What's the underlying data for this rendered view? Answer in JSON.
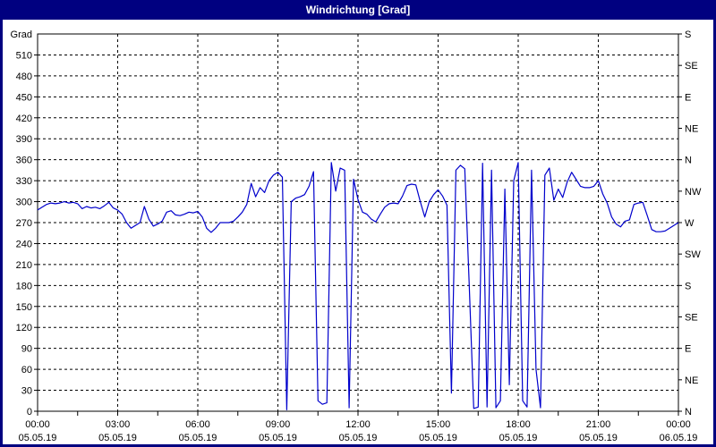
{
  "window": {
    "title": "Windrichtung [Grad]"
  },
  "colors": {
    "titlebar_bg": "#000080",
    "titlebar_text": "#ffffff",
    "frame": "#000080",
    "plot_background": "#ffffff",
    "line": "#0000cc",
    "grid": "#000000",
    "text": "#000000"
  },
  "chart_data": {
    "type": "line",
    "title": "Windrichtung [Grad]",
    "grid": {
      "horizontal_step_deg": 30,
      "vertical_step_minutes": 180,
      "style": "dashed"
    },
    "y_axis_left": {
      "label": "Grad",
      "min": 0,
      "max": 540,
      "ticks": [
        510,
        480,
        450,
        420,
        390,
        360,
        330,
        300,
        270,
        240,
        210,
        180,
        150,
        120,
        90,
        60,
        30,
        0
      ]
    },
    "y_axis_right": {
      "tick_step_deg": 45,
      "ticks": [
        {
          "deg": 540,
          "label": "S"
        },
        {
          "deg": 495,
          "label": "SE"
        },
        {
          "deg": 450,
          "label": "E"
        },
        {
          "deg": 405,
          "label": "NE"
        },
        {
          "deg": 360,
          "label": "N"
        },
        {
          "deg": 315,
          "label": "NW"
        },
        {
          "deg": 270,
          "label": "W"
        },
        {
          "deg": 225,
          "label": "SW"
        },
        {
          "deg": 180,
          "label": "S"
        },
        {
          "deg": 135,
          "label": "SE"
        },
        {
          "deg": 90,
          "label": "E"
        },
        {
          "deg": 45,
          "label": "NE"
        },
        {
          "deg": 0,
          "label": "N"
        }
      ]
    },
    "x_axis": {
      "min_minutes": 0,
      "max_minutes": 1440,
      "minor_tick_minutes": 90,
      "ticks": [
        {
          "minutes": 0,
          "time": "00:00",
          "date": "05.05.19"
        },
        {
          "minutes": 180,
          "time": "03:00",
          "date": "05.05.19"
        },
        {
          "minutes": 360,
          "time": "06:00",
          "date": "05.05.19"
        },
        {
          "minutes": 540,
          "time": "09:00",
          "date": "05.05.19"
        },
        {
          "minutes": 720,
          "time": "12:00",
          "date": "05.05.19"
        },
        {
          "minutes": 900,
          "time": "15:00",
          "date": "05.05.19"
        },
        {
          "minutes": 1080,
          "time": "18:00",
          "date": "05.05.19"
        },
        {
          "minutes": 1260,
          "time": "21:00",
          "date": "05.05.19"
        },
        {
          "minutes": 1440,
          "time": "00:00",
          "date": "06.05.19"
        }
      ]
    },
    "series": [
      {
        "name": "Windrichtung",
        "color": "#0000cc",
        "x_start_minutes": 0,
        "x_step_minutes": 10,
        "values": [
          288,
          292,
          296,
          298,
          297,
          298,
          300,
          298,
          299,
          297,
          290,
          293,
          291,
          292,
          290,
          294,
          299,
          291,
          288,
          282,
          270,
          262,
          266,
          270,
          293,
          275,
          265,
          268,
          272,
          285,
          287,
          281,
          280,
          282,
          285,
          284,
          286,
          278,
          262,
          256,
          262,
          270,
          270,
          270,
          272,
          278,
          285,
          296,
          326,
          307,
          320,
          313,
          330,
          338,
          342,
          335,
          2,
          300,
          305,
          307,
          310,
          322,
          343,
          15,
          10,
          12,
          356,
          315,
          348,
          345,
          5,
          332,
          303,
          285,
          282,
          275,
          271,
          282,
          292,
          297,
          298,
          297,
          308,
          323,
          325,
          324,
          300,
          278,
          300,
          310,
          317,
          308,
          295,
          26,
          345,
          352,
          347,
          180,
          4,
          6,
          355,
          6,
          345,
          5,
          15,
          318,
          38,
          330,
          356,
          15,
          6,
          345,
          60,
          5,
          338,
          348,
          302,
          318,
          306,
          328,
          342,
          332,
          322,
          320,
          320,
          322,
          330,
          311,
          298,
          278,
          268,
          264,
          272,
          274,
          296,
          298,
          299,
          280,
          260,
          257,
          257,
          258,
          262,
          266,
          270
        ]
      }
    ]
  }
}
